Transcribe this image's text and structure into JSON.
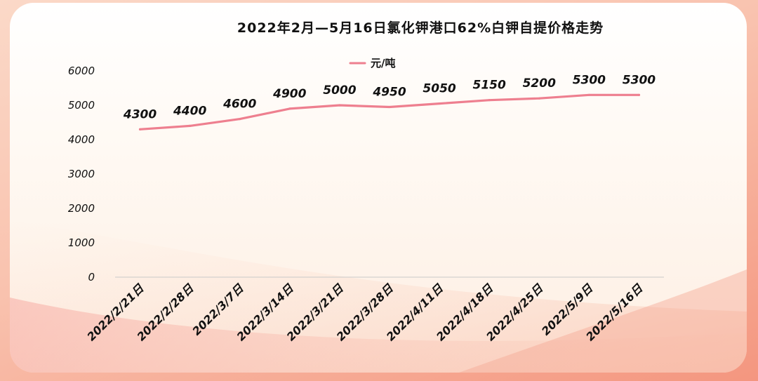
{
  "chart_data": {
    "type": "line",
    "title": "2022年2月—5月16日氯化钾港口62%白钾自提价格走势",
    "xlabel": "",
    "ylabel": "",
    "ylim": [
      0,
      6000
    ],
    "yticks": [
      0,
      1000,
      2000,
      3000,
      4000,
      5000,
      6000
    ],
    "grid": false,
    "legend_position": "top-center",
    "categories": [
      "2022/2/21日",
      "2022/2/28日",
      "2022/3/7日",
      "2022/3/14日",
      "2022/3/21日",
      "2022/3/28日",
      "2022/4/11日",
      "2022/4/18日",
      "2022/4/25日",
      "2022/5/9日",
      "2022/5/16日"
    ],
    "series": [
      {
        "name": "元/吨",
        "color": "#ee7f8f",
        "values": [
          4300,
          4400,
          4600,
          4900,
          5000,
          4950,
          5050,
          5150,
          5200,
          5300,
          5300
        ]
      }
    ]
  }
}
